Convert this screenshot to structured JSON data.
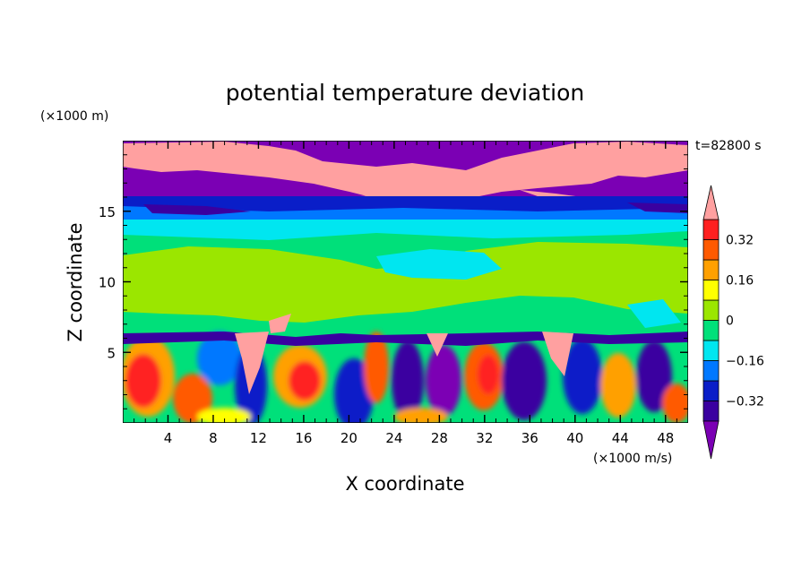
{
  "chart_data": {
    "type": "heatmap",
    "title": "potential temperature deviation",
    "time_label": "t=82800 s",
    "xlabel": "X coordinate",
    "ylabel": "Z coordinate",
    "x_unit": "(×1000 m/s)",
    "y_unit": "(×1000 m)",
    "xlim": [
      0,
      50
    ],
    "ylim": [
      0,
      20
    ],
    "x_ticks": [
      4,
      8,
      12,
      16,
      20,
      24,
      28,
      32,
      36,
      40,
      44,
      48
    ],
    "y_ticks": [
      5,
      10,
      15
    ],
    "colorbar": {
      "levels": [
        -0.4,
        -0.32,
        -0.24,
        -0.16,
        -0.08,
        0,
        0.08,
        0.16,
        0.24,
        0.32,
        0.4
      ],
      "tick_labels": [
        "0.32",
        "0.16",
        "0",
        "−0.16",
        "−0.32"
      ],
      "tick_values": [
        0.32,
        0.16,
        0,
        -0.16,
        -0.32
      ],
      "colors": [
        "#7b00b4",
        "#3a00a0",
        "#0a1ec8",
        "#0078ff",
        "#00e6f0",
        "#00e07a",
        "#9be600",
        "#ffff00",
        "#ffa000",
        "#ff5a00",
        "#ff2020",
        "#ffa0a0"
      ],
      "extend": "both"
    },
    "layers": [
      {
        "z_range": [
          17.5,
          20
        ],
        "dominant_value": "above 0.4 / below -0.4 (mixed)"
      },
      {
        "z_range": [
          14,
          16.5
        ],
        "dominant_value": -0.28
      },
      {
        "z_range": [
          12,
          14
        ],
        "dominant_value": -0.12
      },
      {
        "z_range": [
          6.5,
          12
        ],
        "dominant_value": 0.04
      },
      {
        "z_range": [
          0,
          6.5
        ],
        "dominant_value": "convective mix -0.4 to 0.4"
      }
    ]
  }
}
